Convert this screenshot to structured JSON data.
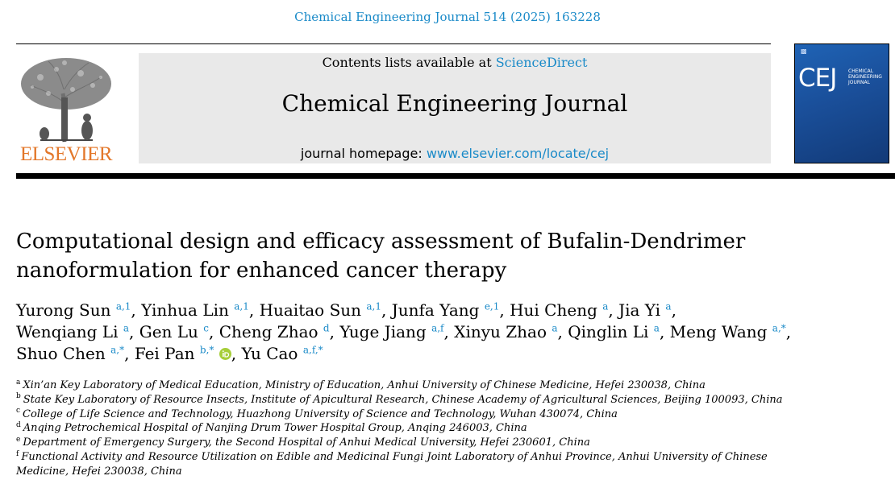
{
  "journal_ref": "Chemical Engineering Journal 514 (2025) 163228",
  "publisher": {
    "name": "ELSEVIER",
    "logo_icon": "elsevier-tree-logo",
    "brand_color": "#e3772a"
  },
  "header": {
    "contents_prefix": "Contents lists available at",
    "contents_link": "ScienceDirect",
    "journal_title": "Chemical Engineering Journal",
    "homepage_prefix": "journal homepage:",
    "homepage_link": "www.elsevier.com/locate/cej",
    "link_color": "#1a8ac8"
  },
  "cover": {
    "abbrev": "CEJ",
    "full_name": "CHEMICAL ENGINEERING JOURNAL",
    "background_color": "#1a4f9a"
  },
  "article": {
    "title": "Computational design and efficacy assessment of Bufalin-Dendrimer nanoformulation for enhanced cancer therapy",
    "authors": [
      {
        "name": "Yurong Sun",
        "sup": "a,1"
      },
      {
        "name": "Yinhua Lin",
        "sup": "a,1"
      },
      {
        "name": "Huaitao Sun",
        "sup": "a,1"
      },
      {
        "name": "Junfa Yang",
        "sup": "e,1"
      },
      {
        "name": "Hui Cheng",
        "sup": "a"
      },
      {
        "name": "Jia Yi",
        "sup": "a"
      },
      {
        "name": "Wenqiang Li",
        "sup": "a"
      },
      {
        "name": "Gen Lu",
        "sup": "c"
      },
      {
        "name": "Cheng Zhao",
        "sup": "d"
      },
      {
        "name": "Yuge Jiang",
        "sup": "a,f"
      },
      {
        "name": "Xinyu Zhao",
        "sup": "a"
      },
      {
        "name": "Qinglin Li",
        "sup": "a"
      },
      {
        "name": "Meng Wang",
        "sup": "a,*"
      },
      {
        "name": "Shuo Chen",
        "sup": "a,*"
      },
      {
        "name": "Fei Pan",
        "sup": "b,*",
        "orcid": true
      },
      {
        "name": "Yu Cao",
        "sup": "a,f,*"
      }
    ],
    "affiliations": [
      {
        "sup": "a",
        "text": "Xin’an Key Laboratory of Medical Education, Ministry of Education, Anhui University of Chinese Medicine, Hefei 230038, China"
      },
      {
        "sup": "b",
        "text": "State Key Laboratory of Resource Insects, Institute of Apicultural Research, Chinese Academy of Agricultural Sciences, Beijing 100093, China"
      },
      {
        "sup": "c",
        "text": "College of Life Science and Technology, Huazhong University of Science and Technology, Wuhan 430074, China"
      },
      {
        "sup": "d",
        "text": "Anqing Petrochemical Hospital of Nanjing Drum Tower Hospital Group, Anqing 246003, China"
      },
      {
        "sup": "e",
        "text": "Department of Emergency Surgery, the Second Hospital of Anhui Medical University, Hefei 230601, China"
      },
      {
        "sup": "f",
        "text": "Functional Activity and Resource Utilization on Edible and Medicinal Fungi Joint Laboratory of Anhui Province, Anhui University of Chinese Medicine, Hefei 230038, China"
      }
    ]
  }
}
